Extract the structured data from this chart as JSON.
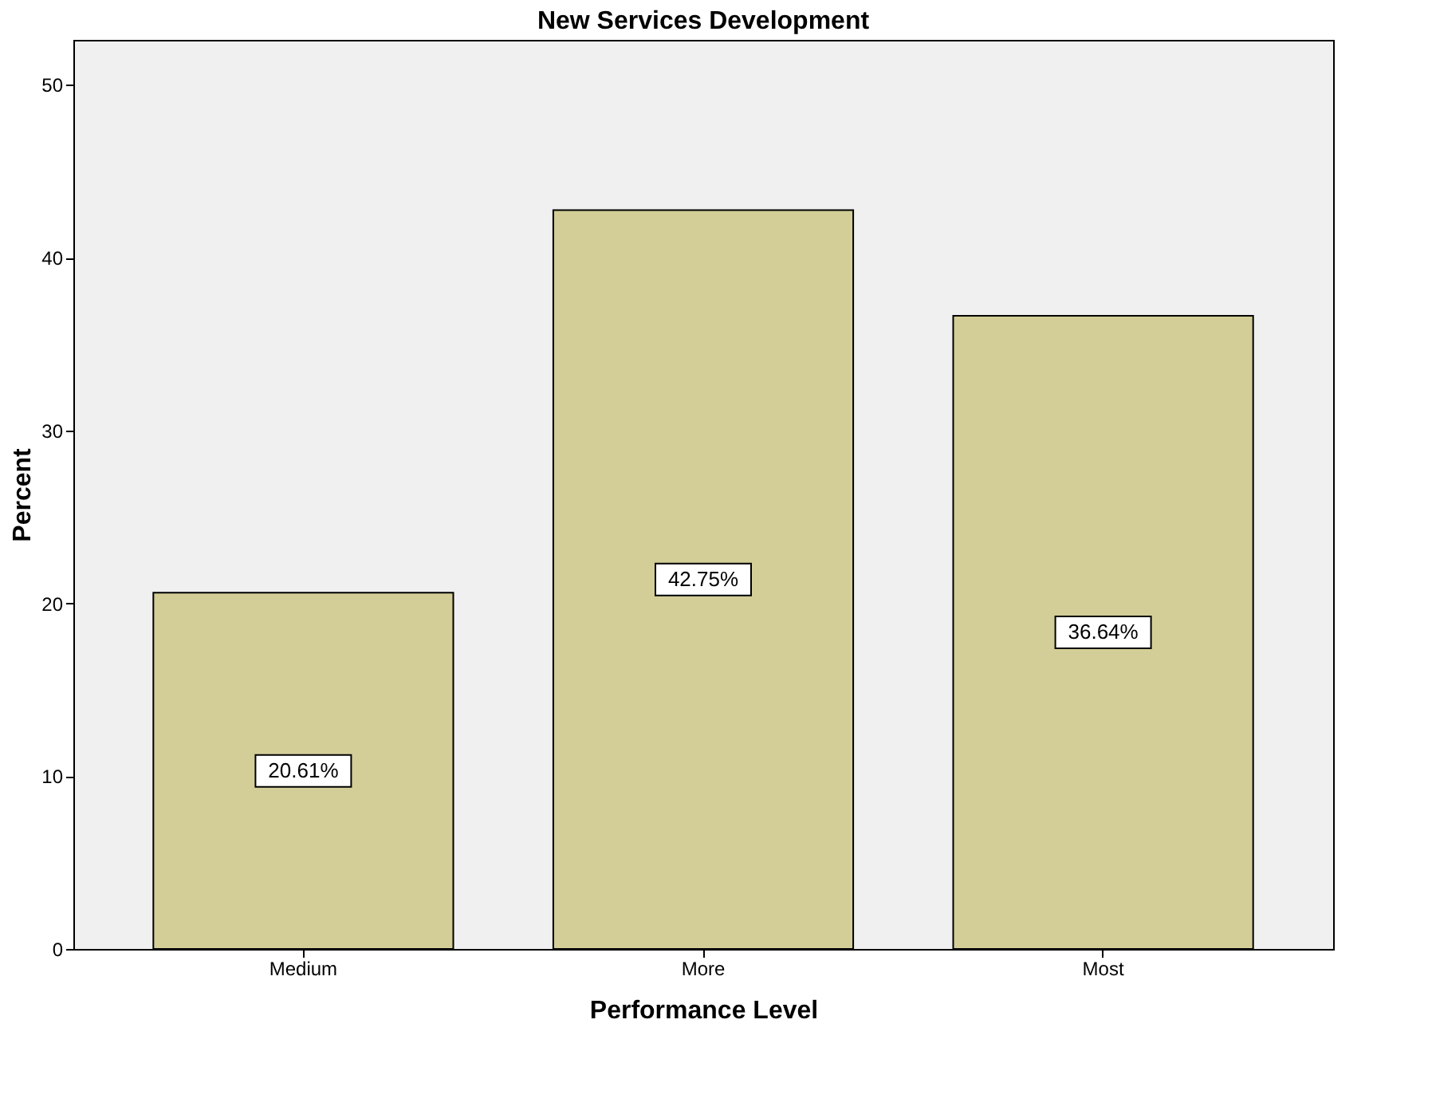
{
  "chart_data": {
    "type": "bar",
    "title": "New Services Development",
    "xlabel": "Performance Level",
    "ylabel": "Percent",
    "categories": [
      "Medium",
      "More",
      "Most"
    ],
    "values": [
      20.61,
      42.75,
      36.64
    ],
    "value_labels": [
      "20.61%",
      "42.75%",
      "36.64%"
    ],
    "color": "#d3ce97",
    "ylim": [
      0,
      52.6
    ],
    "yticks": [
      0,
      10,
      20,
      30,
      40,
      50
    ],
    "grid": false
  }
}
